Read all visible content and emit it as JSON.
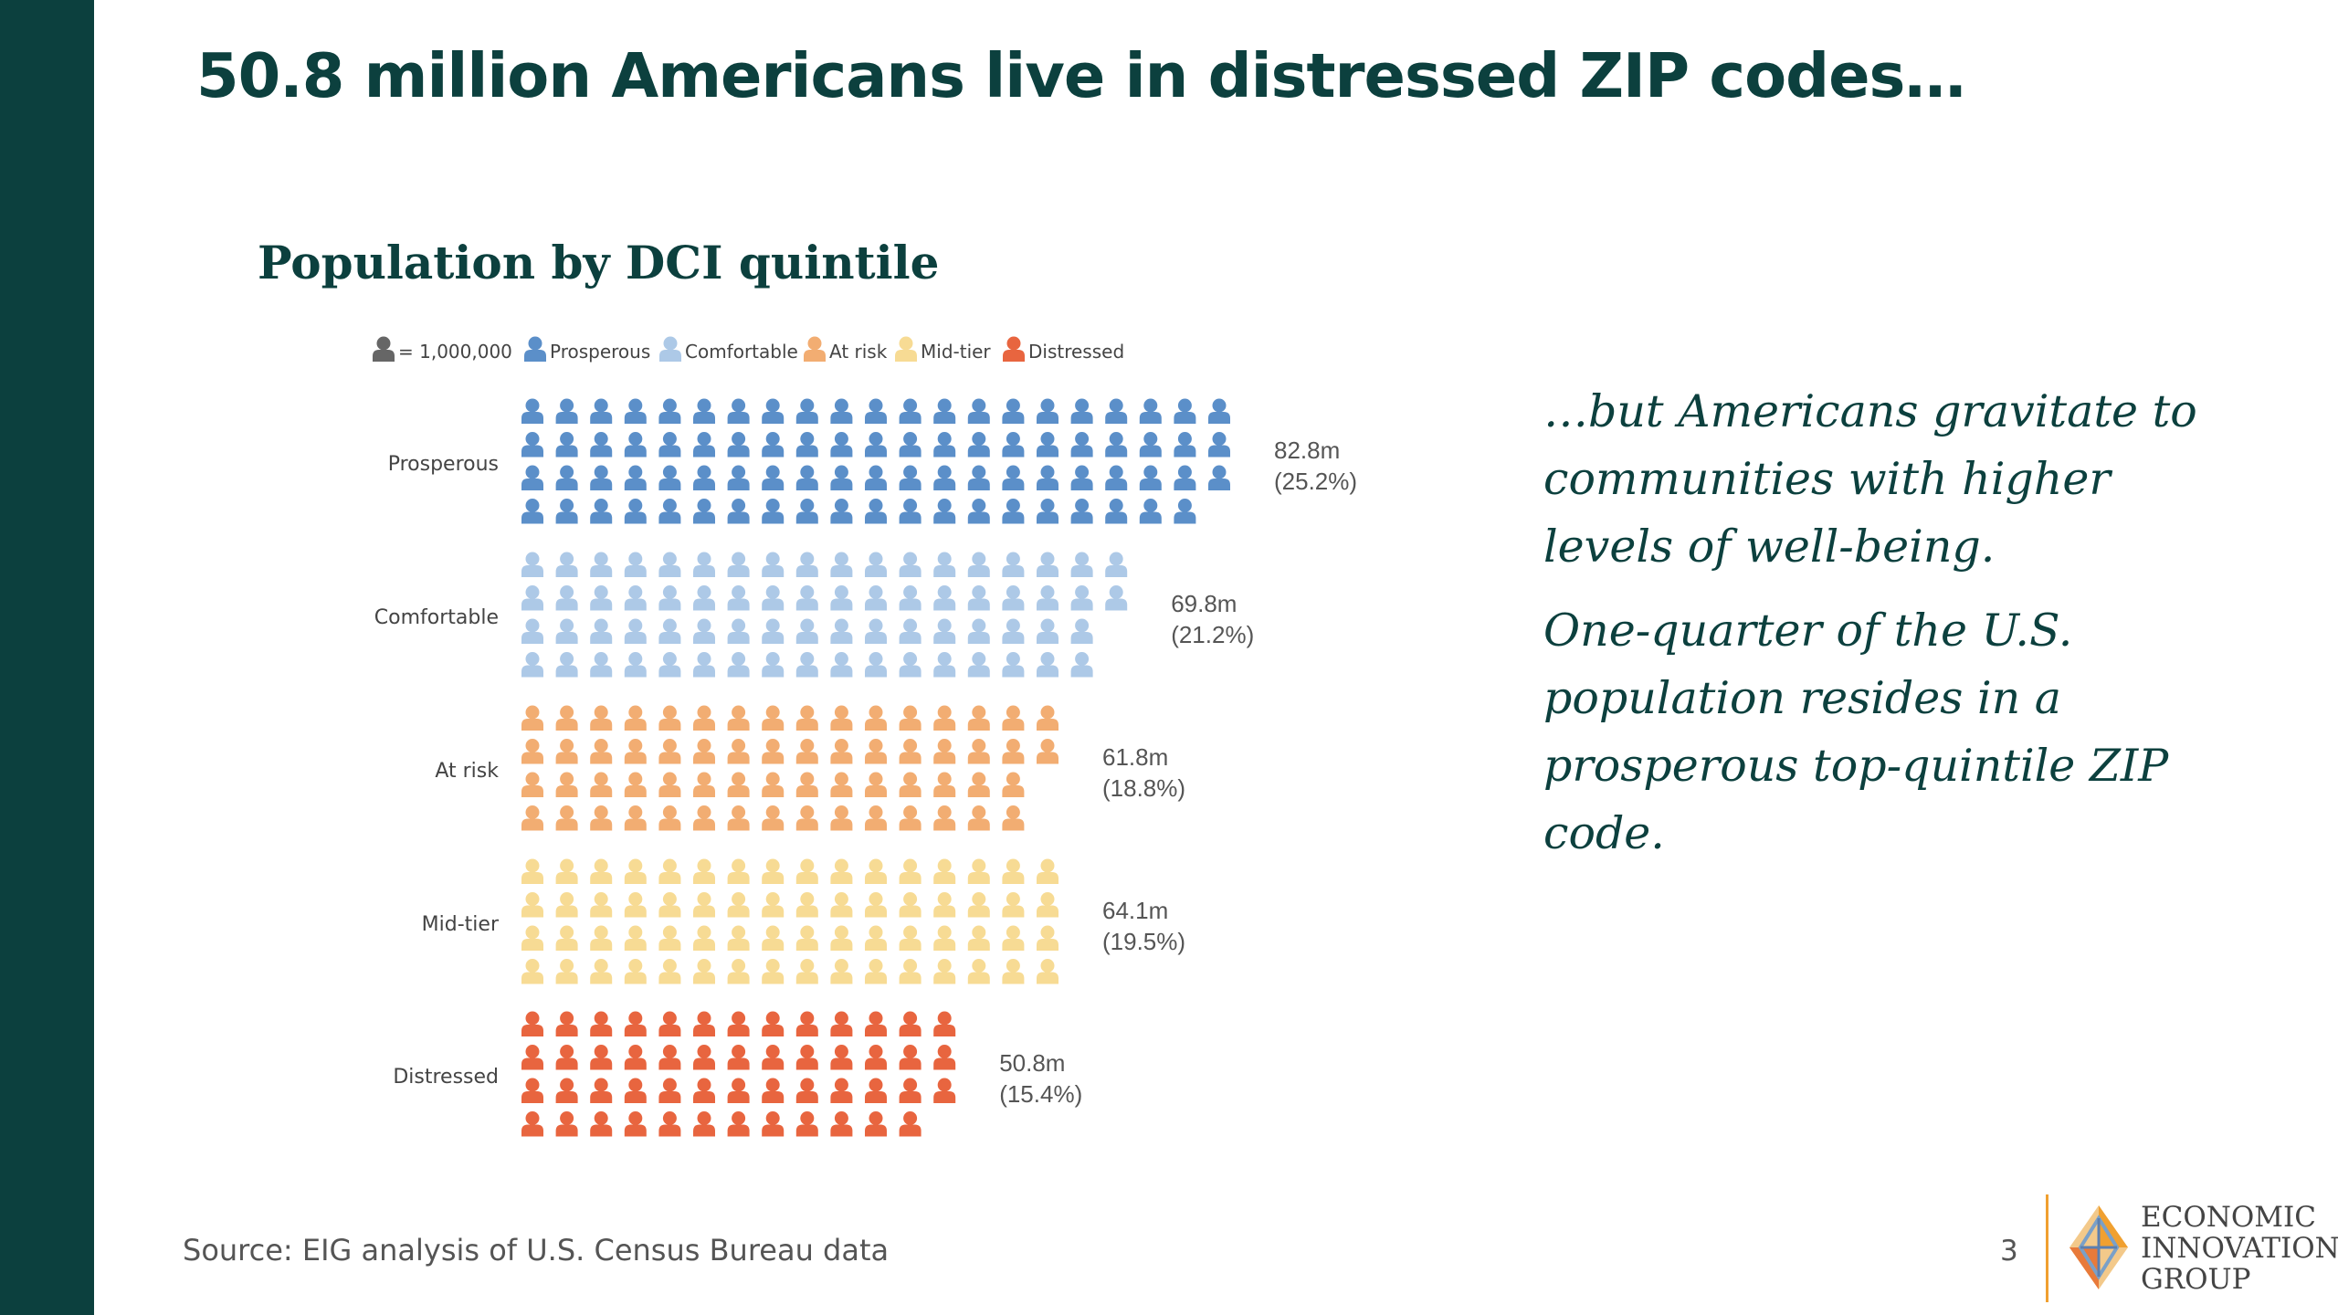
{
  "slide": {
    "title": "50.8 million Americans live in distressed ZIP codes…",
    "page_number": "3",
    "source": "Source: EIG analysis of U.S. Census Bureau data"
  },
  "commentary": {
    "paragraph_1": "…but Americans gravitate to communities with higher levels of well-being.",
    "paragraph_2": "One-quarter of the U.S. population resides in a prosperous top-quintile ZIP code."
  },
  "logo": {
    "line_1": "ECONOMIC",
    "line_2": "INNOVATION",
    "line_3": "GROUP"
  },
  "chart_data": {
    "type": "pictograph",
    "title": "Population by DCI quintile",
    "unit_label": "= 1,000,000",
    "unit_value": 1000000,
    "categories": [
      "Prosperous",
      "Comfortable",
      "At risk",
      "Mid-tier",
      "Distressed"
    ],
    "icon_counts": [
      83,
      70,
      62,
      64,
      51
    ],
    "value_labels": [
      "82.8m",
      "69.8m",
      "61.8m",
      "64.1m",
      "50.8m"
    ],
    "percent_labels": [
      "(25.2%)",
      "(21.2%)",
      "(18.8%)",
      "(19.5%)",
      "(15.4%)"
    ],
    "values_millions": [
      82.8,
      69.8,
      61.8,
      64.1,
      50.8
    ],
    "shares_percent": [
      25.2,
      21.2,
      18.8,
      19.5,
      15.4
    ],
    "legend_position": "top",
    "unit_icon_color": "#666666",
    "colors": [
      "#5b8fc9",
      "#adc9e7",
      "#f2ad72",
      "#f7db94",
      "#e8653f"
    ]
  }
}
